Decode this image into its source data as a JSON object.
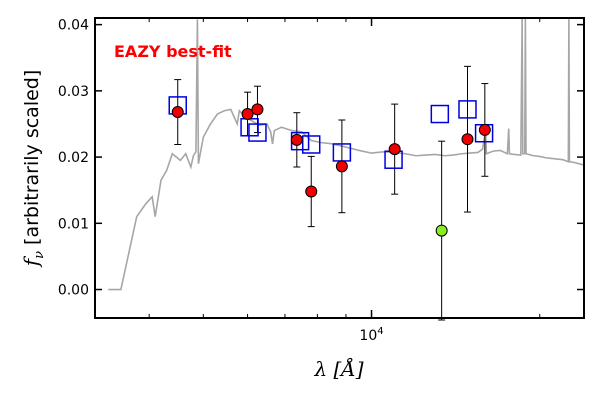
{
  "chart_data": {
    "type": "scatter",
    "annotation": "EAZY best-fit",
    "annotation_color": "#ff0000",
    "xlabel_text": "λ [Å]",
    "ylabel_symbol": "f",
    "ylabel_subscript": "ν",
    "ylabel_text": "[arbitrarily scaled]",
    "x_scale": "log",
    "xlim": [
      3200,
      24000
    ],
    "ylim": [
      -0.0043,
      0.041
    ],
    "yticks": [
      0.0,
      0.01,
      0.02,
      0.03,
      0.04
    ],
    "ytick_labels": [
      "0.00",
      "0.01",
      "0.02",
      "0.03",
      "0.04"
    ],
    "xtick_major": [
      10000
    ],
    "xtick_major_labels": [
      "10"
    ],
    "xtick_major_exp": "4",
    "xtick_minor": [
      4000,
      5000,
      6000,
      7000,
      8000,
      9000,
      20000
    ],
    "grid": false,
    "model_color": "#a6a6a6",
    "model_sed": [
      [
        3380,
        0.0
      ],
      [
        3560,
        0.0
      ],
      [
        3800,
        0.011
      ],
      [
        3950,
        0.013
      ],
      [
        4050,
        0.014
      ],
      [
        4100,
        0.011
      ],
      [
        4200,
        0.0165
      ],
      [
        4300,
        0.018
      ],
      [
        4400,
        0.0205
      ],
      [
        4550,
        0.0195
      ],
      [
        4650,
        0.0205
      ],
      [
        4750,
        0.0185
      ],
      [
        4800,
        0.0202
      ],
      [
        4850,
        0.0208
      ],
      [
        4880,
        0.0408
      ],
      [
        4900,
        0.019
      ],
      [
        5000,
        0.023
      ],
      [
        5150,
        0.025
      ],
      [
        5300,
        0.0265
      ],
      [
        5450,
        0.027
      ],
      [
        5600,
        0.0272
      ],
      [
        5750,
        0.025
      ],
      [
        5800,
        0.027
      ],
      [
        5950,
        0.026
      ],
      [
        6100,
        0.0255
      ],
      [
        6300,
        0.0248
      ],
      [
        6500,
        0.025
      ],
      [
        6600,
        0.0238
      ],
      [
        6650,
        0.022
      ],
      [
        6700,
        0.024
      ],
      [
        6900,
        0.0245
      ],
      [
        7200,
        0.024
      ],
      [
        7500,
        0.0238
      ],
      [
        7800,
        0.0225
      ],
      [
        8100,
        0.0222
      ],
      [
        8500,
        0.022
      ],
      [
        9000,
        0.0215
      ],
      [
        9500,
        0.021
      ],
      [
        10000,
        0.0206
      ],
      [
        10500,
        0.0208
      ],
      [
        11000,
        0.0207
      ],
      [
        11500,
        0.0205
      ],
      [
        12000,
        0.0202
      ],
      [
        12500,
        0.0203
      ],
      [
        13000,
        0.0204
      ],
      [
        13500,
        0.0202
      ],
      [
        14000,
        0.0203
      ],
      [
        14500,
        0.0205
      ],
      [
        15000,
        0.0206
      ],
      [
        15500,
        0.0207
      ],
      [
        15800,
        0.0212
      ],
      [
        16000,
        0.024
      ],
      [
        16050,
        0.0205
      ],
      [
        16500,
        0.0209
      ],
      [
        17000,
        0.021
      ],
      [
        17500,
        0.0205
      ],
      [
        17600,
        0.0243
      ],
      [
        17650,
        0.0205
      ],
      [
        18000,
        0.0204
      ],
      [
        18500,
        0.0203
      ],
      [
        18600,
        0.041
      ],
      [
        18650,
        0.0205
      ],
      [
        18800,
        0.0205
      ],
      [
        18850,
        0.041
      ],
      [
        18900,
        0.0205
      ],
      [
        19500,
        0.0202
      ],
      [
        20000,
        0.0201
      ],
      [
        20500,
        0.0199
      ],
      [
        21000,
        0.0198
      ],
      [
        21500,
        0.0197
      ],
      [
        22000,
        0.0196
      ],
      [
        22500,
        0.0193
      ],
      [
        22550,
        0.041
      ],
      [
        22600,
        0.0193
      ],
      [
        23000,
        0.0192
      ],
      [
        23500,
        0.019
      ],
      [
        24000,
        0.0188
      ]
    ],
    "series": [
      {
        "marker": "open-square",
        "color": "#0000dd",
        "points": [
          [
            4500,
            0.0278
          ],
          [
            6050,
            0.0245
          ],
          [
            6250,
            0.0237
          ],
          [
            7450,
            0.0224
          ],
          [
            7800,
            0.0219
          ],
          [
            8850,
            0.0207
          ],
          [
            10950,
            0.0196
          ],
          [
            13250,
            0.0265
          ],
          [
            14850,
            0.0272
          ],
          [
            15900,
            0.0236
          ]
        ]
      },
      {
        "marker": "circle-errorbar",
        "color": "#ee0000",
        "points": [
          [
            4500,
            0.0268,
            0.0049
          ],
          [
            6000,
            0.0265,
            0.0033
          ],
          [
            6250,
            0.0272,
            0.0035
          ],
          [
            7350,
            0.0226,
            0.0041
          ],
          [
            7800,
            0.0148,
            0.0053
          ],
          [
            8850,
            0.0186,
            0.007
          ],
          [
            11000,
            0.0212,
            0.0068
          ],
          [
            14850,
            0.0227,
            0.011
          ],
          [
            15950,
            0.0241,
            0.007
          ]
        ]
      },
      {
        "marker": "circle-errorbar",
        "color": "#88ee22",
        "points": [
          [
            13350,
            0.0089,
            0.0135
          ]
        ]
      }
    ]
  }
}
